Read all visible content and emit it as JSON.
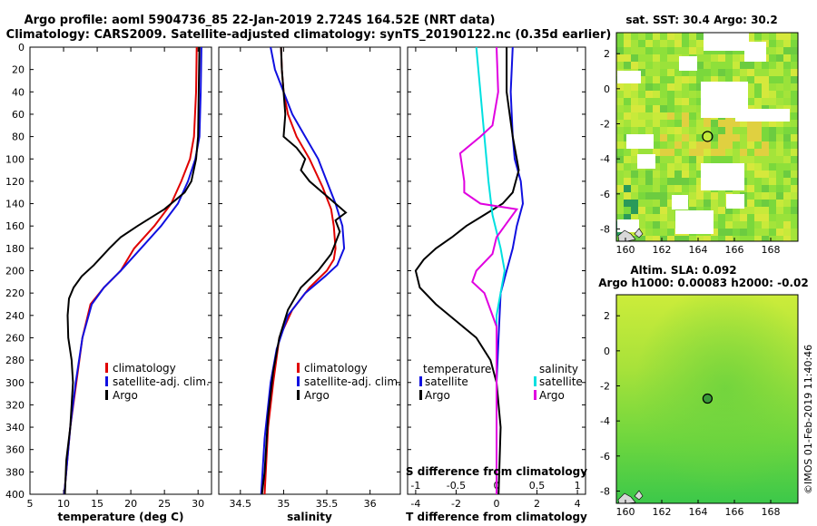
{
  "header": {
    "line1": "Argo profile: aoml 5904736_85 22-Jan-2019 2.724S 164.52E (NRT data)",
    "line2": "Climatology: CARS2009. Satellite-adjusted climatology: synTS_20190122.nc (0.35d earlier)"
  },
  "colors": {
    "climatology": "#e00000",
    "satellite": "#1010e0",
    "argo": "#000000",
    "sat_salinity": "#00e0e0",
    "argo_salinity": "#e000e0"
  },
  "chart_data": [
    {
      "type": "line",
      "title": "",
      "xlabel": "temperature (deg C)",
      "ylabel": "",
      "xlim": [
        5,
        32
      ],
      "ylim": [
        400,
        0
      ],
      "xticks": [
        "5",
        "10",
        "15",
        "20",
        "25",
        "30"
      ],
      "yticks": [
        "0",
        "20",
        "40",
        "60",
        "80",
        "100",
        "120",
        "140",
        "160",
        "180",
        "200",
        "220",
        "240",
        "260",
        "280",
        "300",
        "320",
        "340",
        "360",
        "380",
        "400"
      ],
      "legend": [
        "climatology",
        "satellite-adj. clim.",
        "Argo"
      ],
      "series": [
        {
          "name": "climatology",
          "points": [
            [
              29.8,
              0
            ],
            [
              29.7,
              40
            ],
            [
              29.4,
              80
            ],
            [
              28.8,
              100
            ],
            [
              27.5,
              120
            ],
            [
              26,
              140
            ],
            [
              23.5,
              160
            ],
            [
              20.5,
              180
            ],
            [
              18.5,
              200
            ],
            [
              16,
              215
            ],
            [
              14,
              230
            ],
            [
              12.8,
              260
            ],
            [
              11.9,
              300
            ],
            [
              11,
              340
            ],
            [
              10.4,
              380
            ],
            [
              10.1,
              400
            ]
          ]
        },
        {
          "name": "satellite-adj. clim.",
          "points": [
            [
              30.5,
              0
            ],
            [
              30.4,
              40
            ],
            [
              30.2,
              80
            ],
            [
              29.6,
              100
            ],
            [
              28.5,
              120
            ],
            [
              27,
              140
            ],
            [
              24.5,
              160
            ],
            [
              21.5,
              180
            ],
            [
              18.5,
              200
            ],
            [
              16,
              215
            ],
            [
              14.2,
              230
            ],
            [
              12.8,
              260
            ],
            [
              11.8,
              300
            ],
            [
              11,
              340
            ],
            [
              10.4,
              380
            ],
            [
              10.1,
              400
            ]
          ]
        },
        {
          "name": "Argo",
          "points": [
            [
              30.2,
              0
            ],
            [
              30.1,
              40
            ],
            [
              30,
              80
            ],
            [
              29.7,
              100
            ],
            [
              29,
              120
            ],
            [
              28,
              130
            ],
            [
              25,
              145
            ],
            [
              21,
              160
            ],
            [
              18.5,
              170
            ],
            [
              16.8,
              180
            ],
            [
              14.5,
              195
            ],
            [
              12.7,
              205
            ],
            [
              11.5,
              215
            ],
            [
              10.8,
              225
            ],
            [
              10.6,
              240
            ],
            [
              10.7,
              260
            ],
            [
              11.2,
              280
            ],
            [
              11.4,
              300
            ],
            [
              11,
              340
            ],
            [
              10.4,
              370
            ],
            [
              10.2,
              400
            ]
          ]
        }
      ]
    },
    {
      "type": "line",
      "title": "",
      "xlabel": "salinity",
      "ylabel": "",
      "xlim": [
        34.25,
        36.35
      ],
      "ylim": [
        400,
        0
      ],
      "xticks": [
        "34.5",
        "35",
        "35.5",
        "36"
      ],
      "yticks": [],
      "legend": [
        "climatology",
        "satellite-adj. clim.",
        "Argo"
      ],
      "series": [
        {
          "name": "climatology",
          "points": [
            [
              34.97,
              0
            ],
            [
              34.98,
              20
            ],
            [
              35.0,
              40
            ],
            [
              35.05,
              60
            ],
            [
              35.15,
              80
            ],
            [
              35.3,
              100
            ],
            [
              35.45,
              125
            ],
            [
              35.55,
              145
            ],
            [
              35.58,
              160
            ],
            [
              35.6,
              180
            ],
            [
              35.58,
              190
            ],
            [
              35.5,
              200
            ],
            [
              35.3,
              215
            ],
            [
              35.1,
              235
            ],
            [
              34.95,
              260
            ],
            [
              34.88,
              300
            ],
            [
              34.82,
              340
            ],
            [
              34.78,
              400
            ]
          ]
        },
        {
          "name": "satellite-adj. clim.",
          "points": [
            [
              34.85,
              0
            ],
            [
              34.9,
              20
            ],
            [
              35.0,
              40
            ],
            [
              35.1,
              60
            ],
            [
              35.25,
              80
            ],
            [
              35.4,
              100
            ],
            [
              35.5,
              120
            ],
            [
              35.6,
              140
            ],
            [
              35.68,
              160
            ],
            [
              35.7,
              180
            ],
            [
              35.62,
              195
            ],
            [
              35.48,
              205
            ],
            [
              35.25,
              220
            ],
            [
              35.05,
              240
            ],
            [
              34.92,
              270
            ],
            [
              34.85,
              300
            ],
            [
              34.78,
              350
            ],
            [
              34.74,
              400
            ]
          ]
        },
        {
          "name": "Argo",
          "points": [
            [
              34.97,
              0
            ],
            [
              34.98,
              20
            ],
            [
              35.0,
              40
            ],
            [
              35.02,
              60
            ],
            [
              35.0,
              80
            ],
            [
              35.15,
              90
            ],
            [
              35.25,
              100
            ],
            [
              35.2,
              110
            ],
            [
              35.3,
              120
            ],
            [
              35.45,
              130
            ],
            [
              35.6,
              140
            ],
            [
              35.72,
              148
            ],
            [
              35.6,
              155
            ],
            [
              35.65,
              165
            ],
            [
              35.6,
              175
            ],
            [
              35.55,
              185
            ],
            [
              35.4,
              200
            ],
            [
              35.2,
              215
            ],
            [
              35.05,
              235
            ],
            [
              34.95,
              260
            ],
            [
              34.88,
              290
            ],
            [
              34.82,
              330
            ],
            [
              34.78,
              380
            ],
            [
              34.75,
              400
            ]
          ]
        }
      ]
    },
    {
      "type": "line",
      "title": "",
      "xlabel": "T difference from climatology",
      "x2label": "S difference from climatology",
      "ylabel": "",
      "xlim": [
        -4.4,
        4.4
      ],
      "ylim": [
        400,
        0
      ],
      "xticks": [
        "-4",
        "-2",
        "0",
        "2",
        "4"
      ],
      "x2ticks": [
        "-1",
        "-0.5",
        "0",
        "0.5",
        "1"
      ],
      "yticks": [],
      "legend_left_title": "temperature",
      "legend_right_title": "salinity",
      "legend": [
        "satellite",
        "Argo"
      ],
      "series": [
        {
          "name": "temperature satellite",
          "points": [
            [
              0.8,
              0
            ],
            [
              0.7,
              40
            ],
            [
              0.8,
              80
            ],
            [
              0.9,
              100
            ],
            [
              1.2,
              120
            ],
            [
              1.3,
              140
            ],
            [
              1.0,
              160
            ],
            [
              0.8,
              180
            ],
            [
              0.5,
              200
            ],
            [
              0.2,
              220
            ],
            [
              0.1,
              260
            ],
            [
              0.0,
              300
            ],
            [
              0.0,
              340
            ],
            [
              0.0,
              400
            ]
          ]
        },
        {
          "name": "temperature Argo",
          "points": [
            [
              0.5,
              0
            ],
            [
              0.5,
              40
            ],
            [
              0.8,
              80
            ],
            [
              1.0,
              100
            ],
            [
              1.1,
              110
            ],
            [
              0.8,
              130
            ],
            [
              0.3,
              140
            ],
            [
              -0.6,
              150
            ],
            [
              -1.5,
              160
            ],
            [
              -2.2,
              170
            ],
            [
              -3.0,
              180
            ],
            [
              -3.6,
              190
            ],
            [
              -4.0,
              200
            ],
            [
              -3.8,
              215
            ],
            [
              -3.0,
              230
            ],
            [
              -2.0,
              245
            ],
            [
              -1.0,
              260
            ],
            [
              -0.3,
              280
            ],
            [
              0.0,
              300
            ],
            [
              0.2,
              340
            ],
            [
              0.1,
              400
            ]
          ]
        },
        {
          "name": "salinity satellite",
          "points": [
            [
              -0.25,
              0
            ],
            [
              -0.2,
              40
            ],
            [
              -0.15,
              80
            ],
            [
              -0.1,
              120
            ],
            [
              -0.05,
              150
            ],
            [
              0.05,
              180
            ],
            [
              0.1,
              200
            ],
            [
              0.0,
              240
            ],
            [
              0.0,
              300
            ],
            [
              0.0,
              400
            ]
          ]
        },
        {
          "name": "salinity Argo",
          "points": [
            [
              0.0,
              0
            ],
            [
              0.02,
              40
            ],
            [
              -0.05,
              70
            ],
            [
              -0.2,
              80
            ],
            [
              -0.45,
              95
            ],
            [
              -0.4,
              120
            ],
            [
              -0.4,
              130
            ],
            [
              -0.2,
              140
            ],
            [
              0.25,
              145
            ],
            [
              0.1,
              160
            ],
            [
              0.0,
              170
            ],
            [
              -0.05,
              185
            ],
            [
              -0.25,
              200
            ],
            [
              -0.3,
              210
            ],
            [
              -0.15,
              220
            ],
            [
              0.0,
              250
            ],
            [
              0.0,
              300
            ],
            [
              0.0,
              400
            ]
          ]
        }
      ]
    },
    {
      "type": "heatmap",
      "title": "sat. SST: 30.4 Argo: 30.2",
      "xlim": [
        159.5,
        169.5
      ],
      "ylim": [
        -8.7,
        3.2
      ],
      "xticks": [
        "160",
        "162",
        "164",
        "166",
        "168"
      ],
      "yticks": [
        "2",
        "0",
        "-2",
        "-4",
        "-6",
        "-8"
      ],
      "marker": {
        "lon": 164.52,
        "lat": -2.724
      }
    },
    {
      "type": "heatmap",
      "title": "Altim. SLA: 0.092",
      "subtitle": "Argo h1000: 0.00083 h2000: -0.02",
      "xlim": [
        159.5,
        169.5
      ],
      "ylim": [
        -8.7,
        3.2
      ],
      "xticks": [
        "160",
        "162",
        "164",
        "166",
        "168"
      ],
      "yticks": [
        "2",
        "0",
        "-2",
        "-4",
        "-6",
        "-8"
      ],
      "marker": {
        "lon": 164.52,
        "lat": -2.724
      }
    }
  ],
  "credit": "©IMOS 01-Feb-2019 11:40:46"
}
